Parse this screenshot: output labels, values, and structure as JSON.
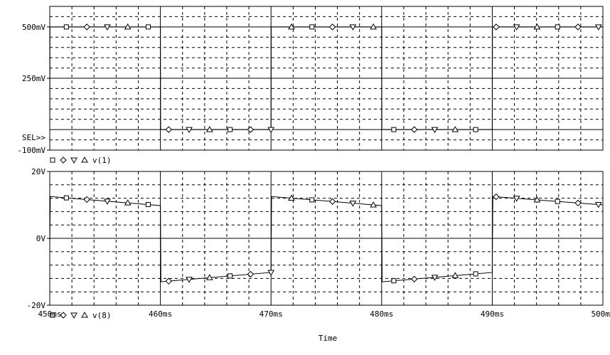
{
  "chart_data": [
    {
      "type": "line",
      "title": "",
      "xlabel": "Time",
      "ylabel": "",
      "xlim": [
        450,
        500
      ],
      "x_unit": "ms",
      "ylim": [
        -100,
        600
      ],
      "y_unit": "mV",
      "y_tick_labels": [
        {
          "value": 500,
          "label": "500mV"
        },
        {
          "value": 250,
          "label": "250mV"
        },
        {
          "value": -100,
          "label": "-100mV"
        }
      ],
      "sel_label": "SEL>>",
      "legend_text": "v(1)",
      "grid": true,
      "series": [
        {
          "name": "v(1)",
          "x": [
            450,
            450.02,
            460.0,
            460.02,
            470.0,
            470.02,
            480.0,
            480.02,
            490.0,
            490.02,
            500
          ],
          "y": [
            0,
            500,
            500,
            0,
            0,
            500,
            500,
            0,
            0,
            500,
            500
          ]
        }
      ]
    },
    {
      "type": "line",
      "title": "",
      "xlabel": "Time",
      "ylabel": "",
      "xlim": [
        450,
        500
      ],
      "x_unit": "ms",
      "ylim": [
        -20,
        20
      ],
      "y_unit": "V",
      "y_tick_labels": [
        {
          "value": 20,
          "label": "20V"
        },
        {
          "value": 0,
          "label": "0V"
        },
        {
          "value": -20,
          "label": "-20V"
        }
      ],
      "x_tick_labels": [
        {
          "value": 450,
          "label": "450ms"
        },
        {
          "value": 460,
          "label": "460ms"
        },
        {
          "value": 470,
          "label": "470ms"
        },
        {
          "value": 480,
          "label": "480ms"
        },
        {
          "value": 490,
          "label": "490ms"
        },
        {
          "value": 500,
          "label": "500ms"
        }
      ],
      "legend_text": "v(8)",
      "grid": true,
      "series": [
        {
          "name": "v(8)",
          "x": [
            450,
            450.05,
            460.0,
            460.05,
            470.0,
            470.05,
            480.0,
            480.05,
            490.0,
            490.05,
            500
          ],
          "y": [
            -2,
            12.5,
            9.8,
            -13,
            -10.2,
            12.5,
            9.8,
            -13,
            -10.2,
            12.5,
            10
          ]
        }
      ]
    }
  ]
}
